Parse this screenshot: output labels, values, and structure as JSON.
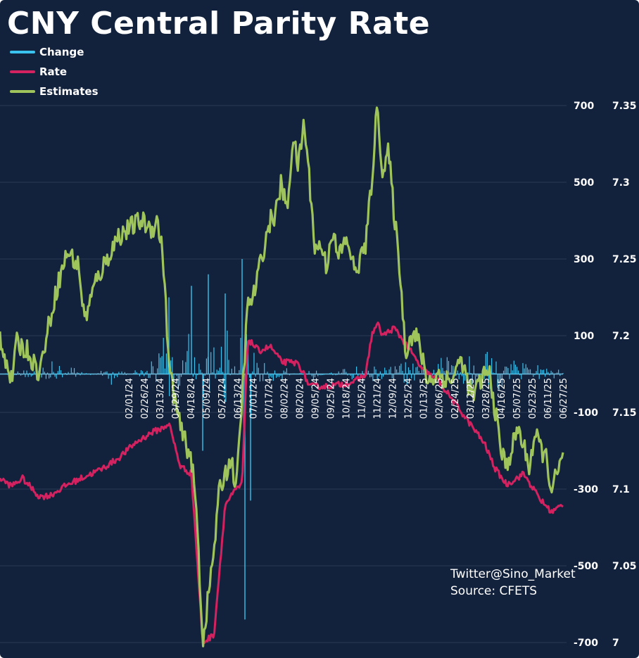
{
  "chart_data": {
    "type": "line",
    "title": "CNY Central Parity Rate",
    "xlabel": "",
    "ylabel": "",
    "x_tick_labels": [
      "02/01/24",
      "02/26/24",
      "03/13/24",
      "03/29/24",
      "04/18/24",
      "05/09/24",
      "05/27/24",
      "06/13/24",
      "07/01/24",
      "07/17/24",
      "08/02/24",
      "08/20/24",
      "09/05/24",
      "09/25/24",
      "10/18/24",
      "11/05/24",
      "11/21/24",
      "12/09/24",
      "12/25/24",
      "01/13/25",
      "02/06/25",
      "02/24/25",
      "03/12/25",
      "03/28/25",
      "04/16/25",
      "05/07/25",
      "05/23/25",
      "06/11/25",
      "06/27/25"
    ],
    "y_left": {
      "range": [
        -700,
        700
      ],
      "ticks": [
        "700",
        "500",
        "300",
        "100",
        "-100",
        "-300",
        "-500",
        "-700"
      ]
    },
    "y_right": {
      "range": [
        7.0,
        7.35
      ],
      "ticks": [
        "7.35",
        "7.3",
        "7.25",
        "7.2",
        "7.15",
        "7.1",
        "7.05",
        "7"
      ]
    },
    "grid": true,
    "legend_position": "top-left",
    "legend": [
      "Change",
      "Rate",
      "Estimates"
    ],
    "colors": {
      "background": "#13223c",
      "change": "#39c3ee",
      "rate": "#d4215f",
      "estimates": "#9fc45c",
      "grid": "#2a3a55"
    },
    "series": [
      {
        "name": "Change",
        "axis": "left",
        "kind": "bar",
        "keypoints": [
          {
            "x": 0.0,
            "y": 0
          },
          {
            "x": 0.1,
            "y": 40
          },
          {
            "x": 0.2,
            "y": -30
          },
          {
            "x": 0.28,
            "y": 50
          },
          {
            "x": 0.3,
            "y": 200
          },
          {
            "x": 0.32,
            "y": -150
          },
          {
            "x": 0.34,
            "y": 230
          },
          {
            "x": 0.36,
            "y": -200
          },
          {
            "x": 0.37,
            "y": 260
          },
          {
            "x": 0.38,
            "y": -120
          },
          {
            "x": 0.4,
            "y": 210
          },
          {
            "x": 0.42,
            "y": -90
          },
          {
            "x": 0.43,
            "y": 300
          },
          {
            "x": 0.435,
            "y": -640
          },
          {
            "x": 0.445,
            "y": -330
          },
          {
            "x": 0.45,
            "y": 60
          },
          {
            "x": 0.5,
            "y": 30
          },
          {
            "x": 0.55,
            "y": -25
          },
          {
            "x": 0.62,
            "y": 30
          },
          {
            "x": 0.65,
            "y": 40
          },
          {
            "x": 0.69,
            "y": 30
          },
          {
            "x": 0.72,
            "y": 60
          },
          {
            "x": 0.75,
            "y": 30
          },
          {
            "x": 0.8,
            "y": 60
          },
          {
            "x": 0.85,
            "y": 60
          },
          {
            "x": 0.87,
            "y": 150
          },
          {
            "x": 0.9,
            "y": 40
          },
          {
            "x": 1.0,
            "y": 20
          }
        ]
      },
      {
        "name": "Rate",
        "axis": "right",
        "kind": "line",
        "keypoints": [
          {
            "x": 0.0,
            "y": 7.107
          },
          {
            "x": 0.02,
            "y": 7.102
          },
          {
            "x": 0.04,
            "y": 7.107
          },
          {
            "x": 0.07,
            "y": 7.095
          },
          {
            "x": 0.09,
            "y": 7.096
          },
          {
            "x": 0.12,
            "y": 7.103
          },
          {
            "x": 0.15,
            "y": 7.108
          },
          {
            "x": 0.18,
            "y": 7.113
          },
          {
            "x": 0.21,
            "y": 7.12
          },
          {
            "x": 0.24,
            "y": 7.13
          },
          {
            "x": 0.27,
            "y": 7.137
          },
          {
            "x": 0.29,
            "y": 7.14
          },
          {
            "x": 0.3,
            "y": 7.143
          },
          {
            "x": 0.32,
            "y": 7.115
          },
          {
            "x": 0.34,
            "y": 7.11
          },
          {
            "x": 0.36,
            "y": 7.0
          },
          {
            "x": 0.38,
            "y": 7.005
          },
          {
            "x": 0.4,
            "y": 7.09
          },
          {
            "x": 0.42,
            "y": 7.1
          },
          {
            "x": 0.43,
            "y": 7.103
          },
          {
            "x": 0.44,
            "y": 7.198
          },
          {
            "x": 0.46,
            "y": 7.19
          },
          {
            "x": 0.48,
            "y": 7.193
          },
          {
            "x": 0.5,
            "y": 7.183
          },
          {
            "x": 0.53,
            "y": 7.182
          },
          {
            "x": 0.55,
            "y": 7.167
          },
          {
            "x": 0.58,
            "y": 7.167
          },
          {
            "x": 0.6,
            "y": 7.168
          },
          {
            "x": 0.63,
            "y": 7.17
          },
          {
            "x": 0.65,
            "y": 7.175
          },
          {
            "x": 0.66,
            "y": 7.2
          },
          {
            "x": 0.67,
            "y": 7.208
          },
          {
            "x": 0.68,
            "y": 7.2
          },
          {
            "x": 0.7,
            "y": 7.205
          },
          {
            "x": 0.72,
            "y": 7.195
          },
          {
            "x": 0.75,
            "y": 7.178
          },
          {
            "x": 0.78,
            "y": 7.17
          },
          {
            "x": 0.8,
            "y": 7.16
          },
          {
            "x": 0.82,
            "y": 7.15
          },
          {
            "x": 0.84,
            "y": 7.14
          },
          {
            "x": 0.86,
            "y": 7.13
          },
          {
            "x": 0.88,
            "y": 7.113
          },
          {
            "x": 0.9,
            "y": 7.103
          },
          {
            "x": 0.93,
            "y": 7.11
          },
          {
            "x": 0.96,
            "y": 7.093
          },
          {
            "x": 0.98,
            "y": 7.085
          },
          {
            "x": 1.0,
            "y": 7.09
          }
        ]
      },
      {
        "name": "Estimates",
        "axis": "right",
        "kind": "line",
        "keypoints": [
          {
            "x": 0.0,
            "y": 7.2
          },
          {
            "x": 0.02,
            "y": 7.17
          },
          {
            "x": 0.03,
            "y": 7.195
          },
          {
            "x": 0.05,
            "y": 7.19
          },
          {
            "x": 0.07,
            "y": 7.175
          },
          {
            "x": 0.08,
            "y": 7.195
          },
          {
            "x": 0.1,
            "y": 7.23
          },
          {
            "x": 0.12,
            "y": 7.255
          },
          {
            "x": 0.14,
            "y": 7.245
          },
          {
            "x": 0.15,
            "y": 7.21
          },
          {
            "x": 0.17,
            "y": 7.235
          },
          {
            "x": 0.19,
            "y": 7.25
          },
          {
            "x": 0.21,
            "y": 7.265
          },
          {
            "x": 0.23,
            "y": 7.27
          },
          {
            "x": 0.25,
            "y": 7.275
          },
          {
            "x": 0.27,
            "y": 7.27
          },
          {
            "x": 0.28,
            "y": 7.275
          },
          {
            "x": 0.29,
            "y": 7.25
          },
          {
            "x": 0.3,
            "y": 7.18
          },
          {
            "x": 0.31,
            "y": 7.16
          },
          {
            "x": 0.32,
            "y": 7.14
          },
          {
            "x": 0.34,
            "y": 7.12
          },
          {
            "x": 0.35,
            "y": 7.08
          },
          {
            "x": 0.36,
            "y": 7.0
          },
          {
            "x": 0.37,
            "y": 7.03
          },
          {
            "x": 0.38,
            "y": 7.06
          },
          {
            "x": 0.39,
            "y": 7.1
          },
          {
            "x": 0.41,
            "y": 7.12
          },
          {
            "x": 0.42,
            "y": 7.1
          },
          {
            "x": 0.43,
            "y": 7.16
          },
          {
            "x": 0.44,
            "y": 7.22
          },
          {
            "x": 0.45,
            "y": 7.225
          },
          {
            "x": 0.47,
            "y": 7.26
          },
          {
            "x": 0.48,
            "y": 7.275
          },
          {
            "x": 0.49,
            "y": 7.28
          },
          {
            "x": 0.5,
            "y": 7.3
          },
          {
            "x": 0.51,
            "y": 7.28
          },
          {
            "x": 0.52,
            "y": 7.33
          },
          {
            "x": 0.53,
            "y": 7.31
          },
          {
            "x": 0.54,
            "y": 7.34
          },
          {
            "x": 0.55,
            "y": 7.3
          },
          {
            "x": 0.56,
            "y": 7.255
          },
          {
            "x": 0.57,
            "y": 7.26
          },
          {
            "x": 0.58,
            "y": 7.245
          },
          {
            "x": 0.59,
            "y": 7.27
          },
          {
            "x": 0.6,
            "y": 7.25
          },
          {
            "x": 0.61,
            "y": 7.26
          },
          {
            "x": 0.62,
            "y": 7.26
          },
          {
            "x": 0.63,
            "y": 7.24
          },
          {
            "x": 0.64,
            "y": 7.25
          },
          {
            "x": 0.65,
            "y": 7.26
          },
          {
            "x": 0.66,
            "y": 7.3
          },
          {
            "x": 0.67,
            "y": 7.35
          },
          {
            "x": 0.68,
            "y": 7.305
          },
          {
            "x": 0.69,
            "y": 7.32
          },
          {
            "x": 0.7,
            "y": 7.28
          },
          {
            "x": 0.71,
            "y": 7.245
          },
          {
            "x": 0.72,
            "y": 7.19
          },
          {
            "x": 0.73,
            "y": 7.2
          },
          {
            "x": 0.74,
            "y": 7.2
          },
          {
            "x": 0.75,
            "y": 7.185
          },
          {
            "x": 0.76,
            "y": 7.17
          },
          {
            "x": 0.78,
            "y": 7.175
          },
          {
            "x": 0.8,
            "y": 7.17
          },
          {
            "x": 0.82,
            "y": 7.185
          },
          {
            "x": 0.83,
            "y": 7.17
          },
          {
            "x": 0.84,
            "y": 7.16
          },
          {
            "x": 0.86,
            "y": 7.175
          },
          {
            "x": 0.87,
            "y": 7.175
          },
          {
            "x": 0.88,
            "y": 7.15
          },
          {
            "x": 0.89,
            "y": 7.125
          },
          {
            "x": 0.9,
            "y": 7.115
          },
          {
            "x": 0.92,
            "y": 7.14
          },
          {
            "x": 0.94,
            "y": 7.115
          },
          {
            "x": 0.95,
            "y": 7.135
          },
          {
            "x": 0.97,
            "y": 7.12
          },
          {
            "x": 0.98,
            "y": 7.1
          },
          {
            "x": 1.0,
            "y": 7.12
          }
        ]
      }
    ]
  },
  "credit": {
    "line1": "Twitter@Sino_Market",
    "line2": "Source: CFETS"
  }
}
